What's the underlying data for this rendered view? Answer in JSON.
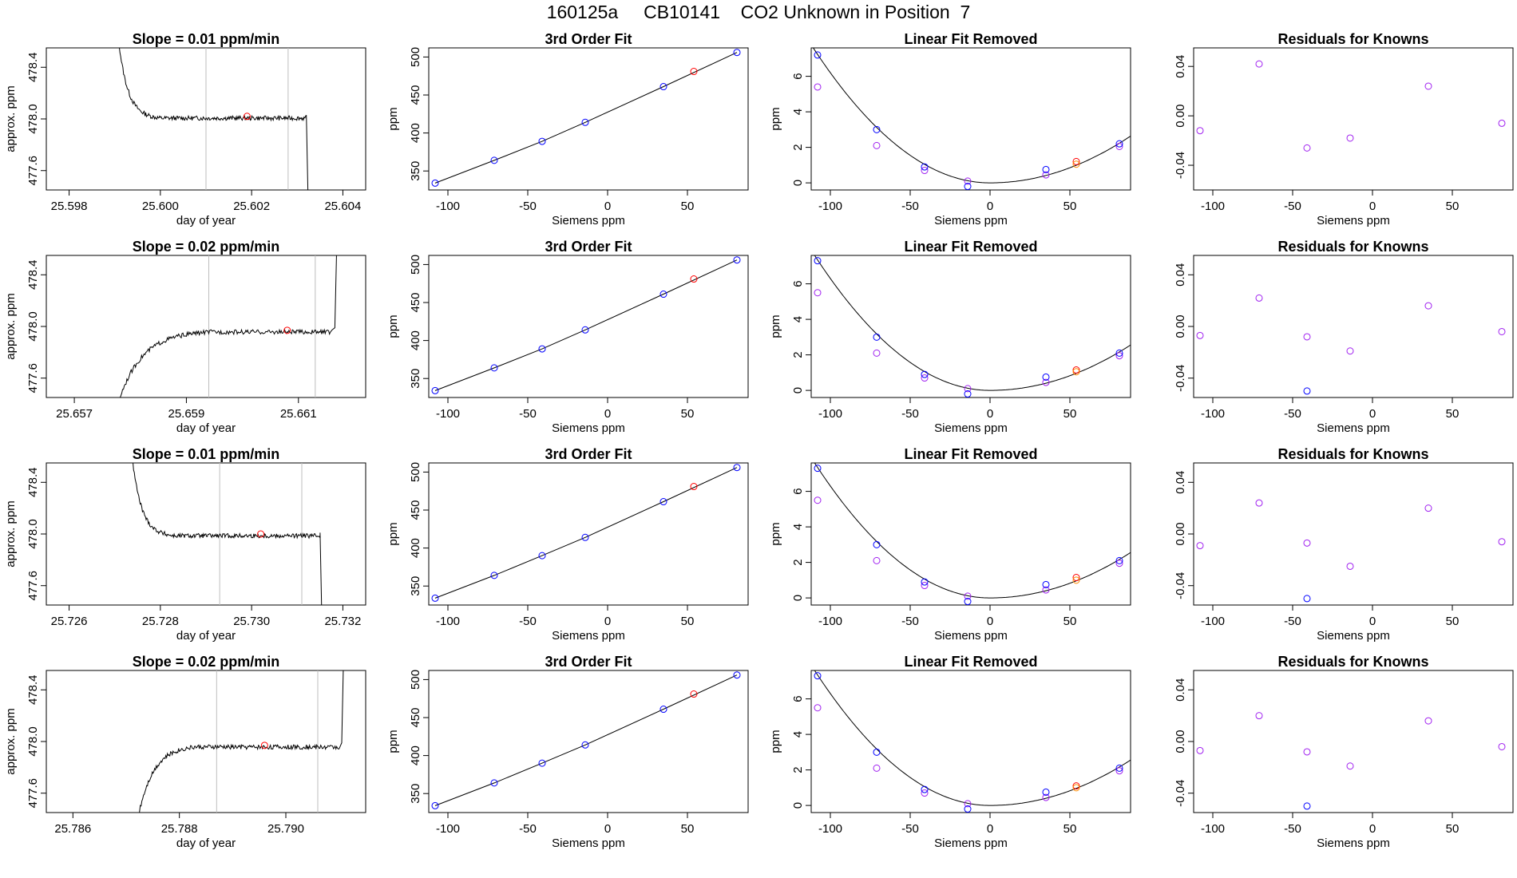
{
  "page_title": "160125a     CB10141    CO2 Unknown in Position  7",
  "colors": {
    "line": "#000000",
    "frame": "#000000",
    "vertical_marker": "#bebebe",
    "unknown_point": "#ff0000",
    "known_fit_point": "#0000ff",
    "raw_point": "#a020f0",
    "unknown_raw_point": "#ff8c00"
  },
  "chart_data": [
    {
      "id": "r1-trace",
      "type": "line",
      "title": "Slope =  0.01  ppm/min",
      "xlabel": "day of year",
      "ylabel": "approx. ppm",
      "xlim": [
        25.5975,
        25.6045
      ],
      "ylim": [
        477.45,
        478.55
      ],
      "xticks": [
        "25.598",
        "25.600",
        "25.602",
        "25.604"
      ],
      "yticks": [
        "477.6",
        "478.0",
        "478.4"
      ],
      "vlines": [
        25.601,
        25.6028
      ],
      "shape": "settle-down",
      "x_start": 25.599,
      "x_settle": 25.6,
      "x_end": 25.6032,
      "y_level": 478.02,
      "marker": {
        "x": 25.6019,
        "y": 478.02
      }
    },
    {
      "id": "r1-cal",
      "type": "scatter",
      "title": "3rd Order Fit",
      "xlabel": "Siemens ppm",
      "ylabel": "ppm",
      "xlim": [
        -112,
        88
      ],
      "ylim": [
        325,
        512
      ],
      "xticks": [
        "-100",
        "-50",
        "0",
        "50"
      ],
      "yticks": [
        "350",
        "400",
        "450",
        "500"
      ],
      "knowns": {
        "x": [
          -108,
          -71,
          -41,
          -14,
          35,
          81
        ],
        "y": [
          334,
          364,
          389,
          414,
          461,
          506
        ]
      },
      "unknown": {
        "x": 54,
        "y": 481
      }
    },
    {
      "id": "r1-lin",
      "type": "scatter",
      "title": "Linear Fit Removed",
      "xlabel": "Siemens ppm",
      "ylabel": "ppm",
      "xlim": [
        -112,
        88
      ],
      "ylim": [
        -0.4,
        7.6
      ],
      "xticks": [
        "-100",
        "-50",
        "0",
        "50"
      ],
      "yticks": [
        "0",
        "2",
        "4",
        "6"
      ],
      "curve": {
        "x0": 0,
        "a_left": 0.00062,
        "a_right": 0.00034
      },
      "fit_points": {
        "x": [
          -108,
          -71,
          -41,
          -14,
          35,
          81
        ],
        "y": [
          7.2,
          3.0,
          0.9,
          -0.2,
          0.75,
          2.2
        ]
      },
      "raw_points": {
        "x": [
          -108,
          -71,
          -41,
          -14,
          35,
          81
        ],
        "y": [
          5.4,
          2.1,
          0.7,
          0.1,
          0.45,
          2.05
        ]
      },
      "unknown_points": {
        "x": [
          54,
          54
        ],
        "y": [
          1.2,
          1.05
        ]
      }
    },
    {
      "id": "r1-res",
      "type": "scatter",
      "title": "Residuals for Knowns",
      "xlabel": "Siemens ppm",
      "ylabel": "",
      "xlim": [
        -112,
        88
      ],
      "ylim": [
        -0.06,
        0.055
      ],
      "xticks": [
        "-100",
        "-50",
        "0",
        "50"
      ],
      "yticks": [
        "-0.04",
        "0.00",
        "0.04"
      ],
      "raw_points": {
        "x": [
          -108,
          -71,
          -41,
          -14,
          35,
          81
        ],
        "y": [
          -0.012,
          0.042,
          -0.026,
          -0.018,
          0.024,
          -0.006
        ]
      },
      "fit_points": {
        "x": [],
        "y": []
      }
    },
    {
      "id": "r2-trace",
      "type": "line",
      "title": "Slope =  0.02  ppm/min",
      "xlabel": "day of year",
      "ylabel": "approx. ppm",
      "xlim": [
        25.6565,
        25.6622
      ],
      "ylim": [
        477.45,
        478.55
      ],
      "xticks": [
        "25.657",
        "25.659",
        "25.661"
      ],
      "yticks": [
        "477.6",
        "478.0",
        "478.4"
      ],
      "vlines": [
        25.6594,
        25.6613
      ],
      "shape": "rise-up",
      "x_start": 25.6576,
      "x_settle": 25.6594,
      "x_end": 25.6616,
      "y_level": 477.97,
      "marker": {
        "x": 25.6608,
        "y": 477.97
      }
    },
    {
      "id": "r2-cal",
      "type": "scatter",
      "title": "3rd Order Fit",
      "xlabel": "Siemens ppm",
      "ylabel": "ppm",
      "xlim": [
        -112,
        88
      ],
      "ylim": [
        325,
        512
      ],
      "xticks": [
        "-100",
        "-50",
        "0",
        "50"
      ],
      "yticks": [
        "350",
        "400",
        "450",
        "500"
      ],
      "knowns": {
        "x": [
          -108,
          -71,
          -41,
          -14,
          35,
          81
        ],
        "y": [
          334,
          364,
          389,
          414,
          461,
          506
        ]
      },
      "unknown": {
        "x": 54,
        "y": 481
      }
    },
    {
      "id": "r2-lin",
      "type": "scatter",
      "title": "Linear Fit Removed",
      "xlabel": "Siemens ppm",
      "ylabel": "ppm",
      "xlim": [
        -112,
        88
      ],
      "ylim": [
        -0.4,
        7.6
      ],
      "xticks": [
        "-100",
        "-50",
        "0",
        "50"
      ],
      "yticks": [
        "0",
        "2",
        "4",
        "6"
      ],
      "curve": {
        "x0": 0,
        "a_left": 0.00063,
        "a_right": 0.00033
      },
      "fit_points": {
        "x": [
          -108,
          -71,
          -41,
          -14,
          35,
          81
        ],
        "y": [
          7.3,
          3.0,
          0.9,
          -0.2,
          0.75,
          2.1
        ]
      },
      "raw_points": {
        "x": [
          -108,
          -71,
          -41,
          -14,
          35,
          81
        ],
        "y": [
          5.5,
          2.1,
          0.7,
          0.1,
          0.45,
          1.95
        ]
      },
      "unknown_points": {
        "x": [
          54,
          54
        ],
        "y": [
          1.15,
          1.05
        ]
      }
    },
    {
      "id": "r2-res",
      "type": "scatter",
      "title": "Residuals for Knowns",
      "xlabel": "Siemens ppm",
      "ylabel": "",
      "xlim": [
        -112,
        88
      ],
      "ylim": [
        -0.055,
        0.055
      ],
      "xticks": [
        "-100",
        "-50",
        "0",
        "50"
      ],
      "yticks": [
        "-0.04",
        "0.00",
        "0.04"
      ],
      "raw_points": {
        "x": [
          -108,
          -71,
          -41,
          -14,
          35,
          81
        ],
        "y": [
          -0.007,
          0.022,
          -0.008,
          -0.019,
          0.016,
          -0.004
        ]
      },
      "fit_points": {
        "x": [
          -41
        ],
        "y": [
          -0.05
        ]
      }
    },
    {
      "id": "r3-trace",
      "type": "line",
      "title": "Slope =  0.01  ppm/min",
      "xlabel": "day of year",
      "ylabel": "approx. ppm",
      "xlim": [
        25.7255,
        25.7325
      ],
      "ylim": [
        477.45,
        478.55
      ],
      "xticks": [
        "25.726",
        "25.728",
        "25.730",
        "25.732"
      ],
      "yticks": [
        "477.6",
        "478.0",
        "478.4"
      ],
      "vlines": [
        25.7293,
        25.7311
      ],
      "shape": "settle-down",
      "x_start": 25.7273,
      "x_settle": 25.7283,
      "x_end": 25.7315,
      "y_level": 478.0,
      "marker": {
        "x": 25.7302,
        "y": 478.0
      }
    },
    {
      "id": "r3-cal",
      "type": "scatter",
      "title": "3rd Order Fit",
      "xlabel": "Siemens ppm",
      "ylabel": "ppm",
      "xlim": [
        -112,
        88
      ],
      "ylim": [
        325,
        512
      ],
      "xticks": [
        "-100",
        "-50",
        "0",
        "50"
      ],
      "yticks": [
        "350",
        "400",
        "450",
        "500"
      ],
      "knowns": {
        "x": [
          -108,
          -71,
          -41,
          -14,
          35,
          81
        ],
        "y": [
          334,
          364,
          390,
          414,
          461,
          506
        ]
      },
      "unknown": {
        "x": 54,
        "y": 481
      }
    },
    {
      "id": "r3-lin",
      "type": "scatter",
      "title": "Linear Fit Removed",
      "xlabel": "Siemens ppm",
      "ylabel": "ppm",
      "xlim": [
        -112,
        88
      ],
      "ylim": [
        -0.4,
        7.6
      ],
      "xticks": [
        "-100",
        "-50",
        "0",
        "50"
      ],
      "yticks": [
        "0",
        "2",
        "4",
        "6"
      ],
      "curve": {
        "x0": 0,
        "a_left": 0.00063,
        "a_right": 0.00033
      },
      "fit_points": {
        "x": [
          -108,
          -71,
          -41,
          -14,
          35,
          81
        ],
        "y": [
          7.3,
          3.0,
          0.9,
          -0.2,
          0.75,
          2.1
        ]
      },
      "raw_points": {
        "x": [
          -108,
          -71,
          -41,
          -14,
          35,
          81
        ],
        "y": [
          5.5,
          2.1,
          0.7,
          0.1,
          0.45,
          1.95
        ]
      },
      "unknown_points": {
        "x": [
          54,
          54
        ],
        "y": [
          1.15,
          1.0
        ]
      }
    },
    {
      "id": "r3-res",
      "type": "scatter",
      "title": "Residuals for Knowns",
      "xlabel": "Siemens ppm",
      "ylabel": "",
      "xlim": [
        -112,
        88
      ],
      "ylim": [
        -0.055,
        0.055
      ],
      "xticks": [
        "-100",
        "-50",
        "0",
        "50"
      ],
      "yticks": [
        "-0.04",
        "0.00",
        "0.04"
      ],
      "raw_points": {
        "x": [
          -108,
          -71,
          -41,
          -14,
          35,
          81
        ],
        "y": [
          -0.009,
          0.024,
          -0.007,
          -0.025,
          0.02,
          -0.006
        ]
      },
      "fit_points": {
        "x": [
          -41
        ],
        "y": [
          -0.05
        ]
      }
    },
    {
      "id": "r4-trace",
      "type": "line",
      "title": "Slope =  0.02  ppm/min",
      "xlabel": "day of year",
      "ylabel": "approx. ppm",
      "xlim": [
        25.7855,
        25.7915
      ],
      "ylim": [
        477.45,
        478.55
      ],
      "xticks": [
        "25.786",
        "25.788",
        "25.790"
      ],
      "yticks": [
        "477.6",
        "478.0",
        "478.4"
      ],
      "vlines": [
        25.7887,
        25.7906
      ],
      "shape": "rise-up",
      "x_start": 25.7871,
      "x_settle": 25.7883,
      "x_end": 25.791,
      "y_level": 477.97,
      "marker": {
        "x": 25.7896,
        "y": 477.97
      }
    },
    {
      "id": "r4-cal",
      "type": "scatter",
      "title": "3rd Order Fit",
      "xlabel": "Siemens ppm",
      "ylabel": "ppm",
      "xlim": [
        -112,
        88
      ],
      "ylim": [
        325,
        512
      ],
      "xticks": [
        "-100",
        "-50",
        "0",
        "50"
      ],
      "yticks": [
        "350",
        "400",
        "450",
        "500"
      ],
      "knowns": {
        "x": [
          -108,
          -71,
          -41,
          -14,
          35,
          81
        ],
        "y": [
          334,
          364,
          390,
          414,
          461,
          506
        ]
      },
      "unknown": {
        "x": 54,
        "y": 481
      }
    },
    {
      "id": "r4-lin",
      "type": "scatter",
      "title": "Linear Fit Removed",
      "xlabel": "Siemens ppm",
      "ylabel": "ppm",
      "xlim": [
        -112,
        88
      ],
      "ylim": [
        -0.4,
        7.6
      ],
      "xticks": [
        "-100",
        "-50",
        "0",
        "50"
      ],
      "yticks": [
        "0",
        "2",
        "4",
        "6"
      ],
      "curve": {
        "x0": 0,
        "a_left": 0.00063,
        "a_right": 0.00033
      },
      "fit_points": {
        "x": [
          -108,
          -71,
          -41,
          -14,
          35,
          81
        ],
        "y": [
          7.3,
          3.0,
          0.9,
          -0.2,
          0.75,
          2.1
        ]
      },
      "raw_points": {
        "x": [
          -108,
          -71,
          -41,
          -14,
          35,
          81
        ],
        "y": [
          5.5,
          2.1,
          0.7,
          0.1,
          0.45,
          1.95
        ]
      },
      "unknown_points": {
        "x": [
          54,
          54
        ],
        "y": [
          1.1,
          1.0
        ]
      }
    },
    {
      "id": "r4-res",
      "type": "scatter",
      "title": "Residuals for Knowns",
      "xlabel": "Siemens ppm",
      "ylabel": "",
      "xlim": [
        -112,
        88
      ],
      "ylim": [
        -0.055,
        0.055
      ],
      "xticks": [
        "-100",
        "-50",
        "0",
        "50"
      ],
      "yticks": [
        "-0.04",
        "0.00",
        "0.04"
      ],
      "raw_points": {
        "x": [
          -108,
          -71,
          -41,
          -14,
          35,
          81
        ],
        "y": [
          -0.007,
          0.02,
          -0.008,
          -0.019,
          0.016,
          -0.004
        ]
      },
      "fit_points": {
        "x": [
          -41
        ],
        "y": [
          -0.05
        ]
      }
    }
  ]
}
